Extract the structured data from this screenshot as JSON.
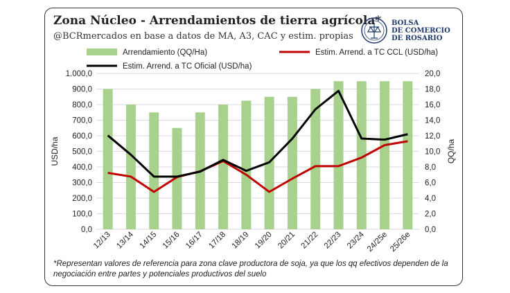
{
  "header": {
    "title": "Zona Núcleo - Arrendamientos de tierra agrícola*",
    "subtitle": "@BCRmercados en base a datos de MA, A3, CAC y estim. propias"
  },
  "logo": {
    "line1": "BOLSA",
    "line2": "DE COMERCIO",
    "line3": "DE ROSARIO"
  },
  "footnote": "*Representan valores de referencia para zona clave productora de soja, ya que los qq efectivos dependen de la negociación entre partes y potenciales productivos del suelo",
  "colors": {
    "bar": "#a9d18e",
    "ccl": "#c00000",
    "oficial": "#000000",
    "grid": "#d9d9d9"
  },
  "chart_data": {
    "type": "bar",
    "categories": [
      "12/13",
      "13/14",
      "14/15",
      "15/16",
      "16/17",
      "17/18",
      "18/19",
      "19/20",
      "20/21",
      "21/22",
      "22/23",
      "23/24",
      "24/25e",
      "25/26e"
    ],
    "series": [
      {
        "name": "Arrendamiento (QQ/Ha)",
        "type": "bar",
        "axis": "right",
        "color": "#a9d18e",
        "values": [
          18.0,
          16.0,
          15.0,
          13.0,
          15.0,
          16.0,
          16.5,
          17.0,
          17.0,
          18.0,
          19.0,
          19.0,
          19.0,
          19.0
        ]
      },
      {
        "name": "Estim. Arrend. a TC CCL (USD/ha)",
        "type": "line",
        "axis": "left",
        "color": "#c00000",
        "values": [
          362,
          338,
          240,
          335,
          372,
          438,
          350,
          240,
          325,
          405,
          405,
          460,
          540,
          565
        ]
      },
      {
        "name": "Estim. Arrend. a TC Oficial (USD/ha)",
        "type": "line",
        "axis": "left",
        "color": "#000000",
        "values": [
          602,
          478,
          338,
          338,
          370,
          445,
          375,
          430,
          582,
          770,
          888,
          582,
          575,
          610
        ]
      }
    ],
    "ylabel": "USD/ha",
    "y2label": "QQ/ha",
    "ylim": [
      0,
      1000
    ],
    "y2lim": [
      0,
      20
    ],
    "yticks": [
      "0,0",
      "100,0",
      "200,0",
      "300,0",
      "400,0",
      "500,0",
      "600,0",
      "700,0",
      "800,0",
      "900,0",
      "1.000,0"
    ],
    "y2ticks": [
      "0,0",
      "2,0",
      "4,0",
      "6,0",
      "8,0",
      "10,0",
      "12,0",
      "14,0",
      "16,0",
      "18,0",
      "20,0"
    ],
    "grid": true,
    "legend": "top"
  }
}
